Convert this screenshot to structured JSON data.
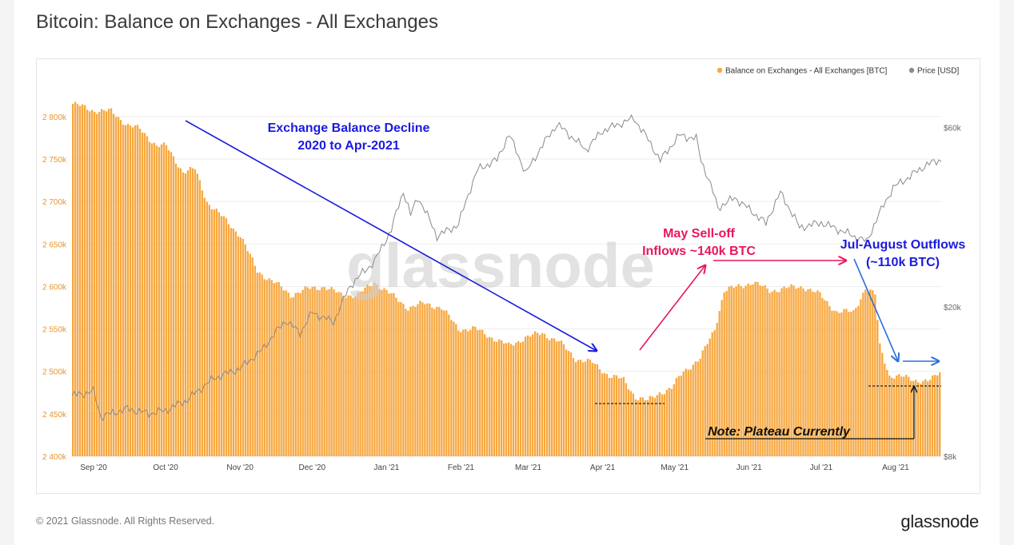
{
  "page": {
    "title": "Bitcoin: Balance on Exchanges - All Exchanges",
    "footer_copyright": "© 2021 Glassnode. All Rights Reserved.",
    "footer_logo": "glassnode",
    "watermark": "glassnode"
  },
  "colors": {
    "bar": "#f7a841",
    "price_line": "#8a8a8a",
    "left_axis_text": "#e8952d",
    "annotation_blue": "#1a1adf",
    "annotation_red": "#e8165e",
    "annotation_blue2": "#2b6fe0"
  },
  "chart_data": {
    "type": "bar",
    "title": "Bitcoin: Balance on Exchanges - All Exchanges",
    "legend_placement": "top-right",
    "grid": true,
    "series": [
      {
        "name": "Balance on Exchanges - All Exchanges [BTC]",
        "type": "bar",
        "axis": "left",
        "color": "#f7a841"
      },
      {
        "name": "Price [USD]",
        "type": "line",
        "axis": "right",
        "color": "#8a8a8a"
      }
    ],
    "x_tick_labels": [
      "Sep '20",
      "Oct '20",
      "Nov '20",
      "Dec '20",
      "Jan '21",
      "Feb '21",
      "Mar '21",
      "Apr '21",
      "May '21",
      "Jun '21",
      "Jul '21",
      "Aug '21"
    ],
    "x_range": [
      "2020-08-23",
      "2021-08-20"
    ],
    "left_axis": {
      "tick_labels": [
        "2 400k",
        "2 450k",
        "2 500k",
        "2 550k",
        "2 600k",
        "2 650k",
        "2 700k",
        "2 750k",
        "2 800k"
      ],
      "ticks": [
        2400,
        2450,
        2500,
        2550,
        2600,
        2650,
        2700,
        2750,
        2800
      ],
      "range": [
        2400,
        2830
      ]
    },
    "right_axis": {
      "tick_labels": [
        "$8k",
        "$20k",
        "$60k"
      ],
      "ticks": [
        8000,
        20000,
        60000
      ],
      "scale": "log",
      "range": [
        8000,
        75000
      ]
    },
    "balance_points": [
      [
        "2020-08-23",
        2815
      ],
      [
        "2020-09-01",
        2807
      ],
      [
        "2020-09-08",
        2806
      ],
      [
        "2020-09-15",
        2790
      ],
      [
        "2020-09-20",
        2785
      ],
      [
        "2020-09-27",
        2766
      ],
      [
        "2020-10-01",
        2765
      ],
      [
        "2020-10-08",
        2735
      ],
      [
        "2020-10-13",
        2738
      ],
      [
        "2020-10-18",
        2700
      ],
      [
        "2020-10-25",
        2680
      ],
      [
        "2020-11-01",
        2660
      ],
      [
        "2020-11-08",
        2618
      ],
      [
        "2020-11-15",
        2605
      ],
      [
        "2020-11-22",
        2590
      ],
      [
        "2020-11-29",
        2597
      ],
      [
        "2020-12-06",
        2600
      ],
      [
        "2020-12-13",
        2590
      ],
      [
        "2020-12-20",
        2590
      ],
      [
        "2020-12-27",
        2605
      ],
      [
        "2021-01-03",
        2590
      ],
      [
        "2021-01-10",
        2575
      ],
      [
        "2021-01-17",
        2580
      ],
      [
        "2021-01-24",
        2575
      ],
      [
        "2021-01-31",
        2550
      ],
      [
        "2021-02-07",
        2550
      ],
      [
        "2021-02-14",
        2540
      ],
      [
        "2021-02-21",
        2530
      ],
      [
        "2021-02-28",
        2540
      ],
      [
        "2021-03-07",
        2545
      ],
      [
        "2021-03-14",
        2535
      ],
      [
        "2021-03-21",
        2515
      ],
      [
        "2021-03-28",
        2510
      ],
      [
        "2021-04-04",
        2495
      ],
      [
        "2021-04-10",
        2490
      ],
      [
        "2021-04-15",
        2470
      ],
      [
        "2021-04-20",
        2465
      ],
      [
        "2021-04-25",
        2475
      ],
      [
        "2021-04-30",
        2480
      ],
      [
        "2021-05-05",
        2500
      ],
      [
        "2021-05-12",
        2515
      ],
      [
        "2021-05-18",
        2550
      ],
      [
        "2021-05-22",
        2595
      ],
      [
        "2021-05-28",
        2600
      ],
      [
        "2021-06-03",
        2605
      ],
      [
        "2021-06-10",
        2595
      ],
      [
        "2021-06-17",
        2598
      ],
      [
        "2021-06-24",
        2600
      ],
      [
        "2021-07-01",
        2590
      ],
      [
        "2021-07-08",
        2570
      ],
      [
        "2021-07-15",
        2570
      ],
      [
        "2021-07-20",
        2598
      ],
      [
        "2021-07-24",
        2590
      ],
      [
        "2021-07-26",
        2530
      ],
      [
        "2021-07-30",
        2495
      ],
      [
        "2021-08-05",
        2493
      ],
      [
        "2021-08-10",
        2490
      ],
      [
        "2021-08-15",
        2488
      ],
      [
        "2021-08-18",
        2493
      ],
      [
        "2021-08-20",
        2500
      ]
    ],
    "price_points": [
      [
        "2020-08-23",
        11600
      ],
      [
        "2020-09-01",
        11900
      ],
      [
        "2020-09-04",
        10200
      ],
      [
        "2020-09-15",
        10700
      ],
      [
        "2020-09-24",
        10400
      ],
      [
        "2020-10-01",
        10600
      ],
      [
        "2020-10-10",
        11300
      ],
      [
        "2020-10-21",
        12900
      ],
      [
        "2020-11-01",
        13700
      ],
      [
        "2020-11-10",
        15300
      ],
      [
        "2020-11-20",
        18400
      ],
      [
        "2020-11-26",
        17000
      ],
      [
        "2020-12-01",
        19300
      ],
      [
        "2020-12-10",
        18200
      ],
      [
        "2020-12-17",
        22800
      ],
      [
        "2020-12-27",
        26400
      ],
      [
        "2021-01-03",
        32000
      ],
      [
        "2021-01-08",
        40600
      ],
      [
        "2021-01-11",
        35000
      ],
      [
        "2021-01-14",
        39200
      ],
      [
        "2021-01-22",
        30800
      ],
      [
        "2021-01-31",
        33100
      ],
      [
        "2021-02-08",
        46400
      ],
      [
        "2021-02-16",
        49200
      ],
      [
        "2021-02-21",
        57400
      ],
      [
        "2021-02-28",
        45200
      ],
      [
        "2021-03-13",
        61200
      ],
      [
        "2021-03-25",
        52300
      ],
      [
        "2021-04-01",
        58800
      ],
      [
        "2021-04-14",
        63500
      ],
      [
        "2021-04-25",
        49000
      ],
      [
        "2021-05-03",
        57200
      ],
      [
        "2021-05-10",
        56000
      ],
      [
        "2021-05-12",
        49200
      ],
      [
        "2021-05-19",
        36700
      ],
      [
        "2021-05-26",
        39000
      ],
      [
        "2021-06-08",
        33300
      ],
      [
        "2021-06-14",
        40200
      ],
      [
        "2021-06-22",
        32500
      ],
      [
        "2021-07-01",
        33500
      ],
      [
        "2021-07-20",
        29800
      ],
      [
        "2021-07-31",
        41500
      ],
      [
        "2021-08-07",
        44500
      ],
      [
        "2021-08-14",
        47800
      ],
      [
        "2021-08-20",
        49300
      ]
    ],
    "annotations": {
      "decline_line1": "Exchange Balance Decline",
      "decline_line2": "2020 to Apr-2021",
      "selloff_line1": "May Sell-off",
      "selloff_line2": "Inflows ~140k BTC",
      "outflows_line1": "Jul-August Outflows",
      "outflows_line2": "(~110k BTC)",
      "plateau_note": "Note: Plateau Currently"
    }
  }
}
